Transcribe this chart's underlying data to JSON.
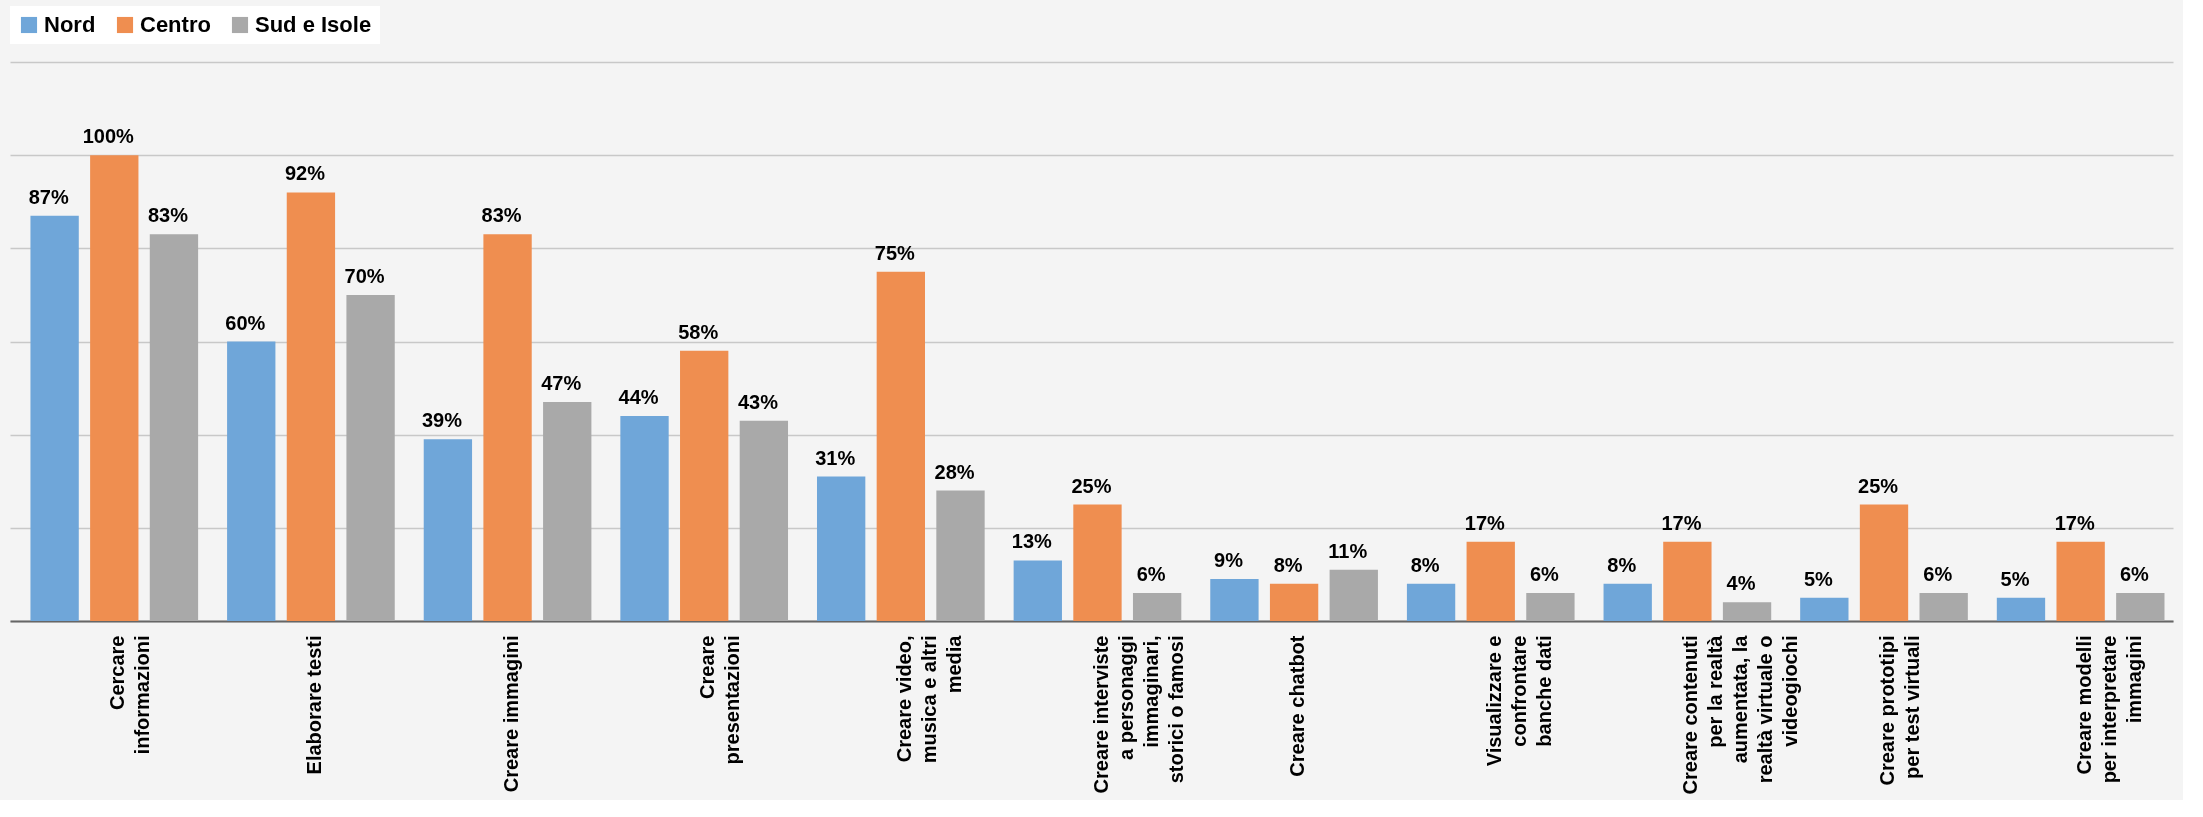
{
  "chart_data": {
    "type": "bar",
    "categories": [
      "Cercare informazioni",
      "Elaborare testi",
      "Creare immagini",
      "Creare presentazioni",
      "Creare video, musica e altri media",
      "Creare interviste a personaggi immaginari, storici o famosi",
      "Creare chatbot",
      "Visualizzare e confrontare banche dati",
      "Creare contenuti per la realtà aumentata, la realtà virtuale o videogiochi",
      "Creare prototipi per test virtuali",
      "Creare modelli per interpretare immagini"
    ],
    "series": [
      {
        "name": "Nord",
        "color": "#6fa6d9",
        "values": [
          87,
          60,
          39,
          44,
          31,
          13,
          9,
          8,
          8,
          5,
          5
        ],
        "value_labels": [
          "87%",
          "60%",
          "39%",
          "44%",
          "31%",
          "13%",
          "9%",
          "8%",
          "8%",
          "5%",
          "5%"
        ]
      },
      {
        "name": "Centro",
        "color": "#ef8e50",
        "values": [
          100,
          92,
          83,
          58,
          75,
          25,
          8,
          17,
          17,
          25,
          17
        ],
        "value_labels": [
          "100%",
          "92%",
          "83%",
          "58%",
          "75%",
          "25%",
          "8%",
          "17%",
          "17%",
          "25%",
          "17%"
        ]
      },
      {
        "name": "Sud e Isole",
        "color": "#a9a9a9",
        "values": [
          83,
          70,
          47,
          43,
          28,
          6,
          11,
          6,
          4,
          6,
          6
        ],
        "value_labels": [
          "83%",
          "70%",
          "47%",
          "43%",
          "28%",
          "6%",
          "11%",
          "6%",
          "4%",
          "6%",
          "6%"
        ]
      }
    ],
    "ylim": [
      0,
      120
    ],
    "yticks": [
      {
        "value": 0,
        "label": null
      },
      {
        "value": 20,
        "label": null
      },
      {
        "value": 40,
        "label": null
      },
      {
        "value": 60,
        "label": null
      },
      {
        "value": 80,
        "label": null
      },
      {
        "value": 100,
        "label": null
      },
      {
        "value": 120,
        "label": null
      }
    ],
    "grid": "y",
    "legend": "top",
    "tick_labels": "x"
  }
}
